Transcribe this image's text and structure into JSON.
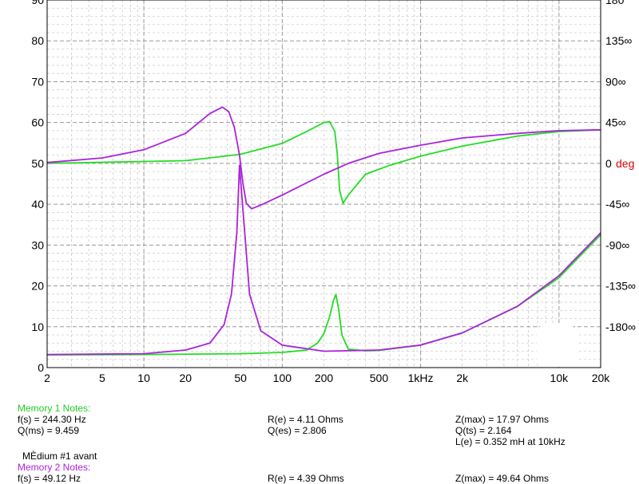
{
  "chart_data": {
    "type": "line",
    "xscale": "log",
    "xlim": [
      2,
      20000
    ],
    "ylim": [
      0,
      90
    ],
    "y2lim": [
      -225,
      180
    ],
    "grid": true,
    "x_ticks": [
      {
        "value": 2,
        "label": "2"
      },
      {
        "value": 5,
        "label": "5"
      },
      {
        "value": 10,
        "label": "10"
      },
      {
        "value": 20,
        "label": "20"
      },
      {
        "value": 50,
        "label": "50"
      },
      {
        "value": 100,
        "label": "100"
      },
      {
        "value": 200,
        "label": "200"
      },
      {
        "value": 500,
        "label": "500"
      },
      {
        "value": 1000,
        "label": "1kHz"
      },
      {
        "value": 2000,
        "label": "2k"
      },
      {
        "value": 10000,
        "label": "10k"
      },
      {
        "value": 20000,
        "label": "20k"
      }
    ],
    "y_ticks": [
      {
        "value": 0,
        "label": "0"
      },
      {
        "value": 10,
        "label": "10"
      },
      {
        "value": 20,
        "label": "20"
      },
      {
        "value": 30,
        "label": "30"
      },
      {
        "value": 40,
        "label": "40"
      },
      {
        "value": 50,
        "label": "50"
      },
      {
        "value": 60,
        "label": "60"
      },
      {
        "value": 70,
        "label": "70"
      },
      {
        "value": 80,
        "label": "80"
      },
      {
        "value": 90,
        "label": "90"
      }
    ],
    "y2_ticks": [
      {
        "value": 180,
        "label": "180"
      },
      {
        "value": 135,
        "label": "135∞"
      },
      {
        "value": 90,
        "label": "90∞"
      },
      {
        "value": 45,
        "label": "45∞"
      },
      {
        "value": 0,
        "label": "0"
      },
      {
        "value": -45,
        "label": "-45∞"
      },
      {
        "value": -90,
        "label": "-90∞"
      },
      {
        "value": -135,
        "label": "-135∞"
      },
      {
        "value": -180,
        "label": "-180∞"
      }
    ],
    "y2_zero_unit": "deg",
    "series": [
      {
        "name": "Memory 1",
        "kind": "impedance",
        "color": "#22dd22",
        "points": [
          [
            2,
            3.1
          ],
          [
            10,
            3.2
          ],
          [
            50,
            3.4
          ],
          [
            100,
            3.7
          ],
          [
            150,
            4.3
          ],
          [
            180,
            6.0
          ],
          [
            200,
            8.3
          ],
          [
            220,
            12.5
          ],
          [
            235,
            16.5
          ],
          [
            244,
            17.9
          ],
          [
            255,
            14.5
          ],
          [
            270,
            8.0
          ],
          [
            300,
            4.5
          ],
          [
            400,
            4.1
          ],
          [
            500,
            4.2
          ],
          [
            1000,
            5.5
          ],
          [
            2000,
            8.5
          ],
          [
            5000,
            15.0
          ],
          [
            10000,
            22.0
          ],
          [
            20000,
            32.5
          ]
        ]
      },
      {
        "name": "Memory 1",
        "kind": "phase",
        "color": "#22dd22",
        "points": [
          [
            2,
            0
          ],
          [
            20,
            3
          ],
          [
            50,
            10
          ],
          [
            100,
            22
          ],
          [
            150,
            35
          ],
          [
            200,
            45
          ],
          [
            220,
            46
          ],
          [
            240,
            35
          ],
          [
            250,
            10
          ],
          [
            260,
            -30
          ],
          [
            275,
            -44
          ],
          [
            300,
            -35
          ],
          [
            400,
            -12
          ],
          [
            600,
            -2
          ],
          [
            1000,
            8
          ],
          [
            2000,
            19
          ],
          [
            5000,
            30
          ],
          [
            10000,
            35
          ],
          [
            20000,
            37
          ]
        ]
      },
      {
        "name": "Memory 2",
        "kind": "impedance",
        "color": "#aa22dd",
        "points": [
          [
            2,
            3.2
          ],
          [
            10,
            3.4
          ],
          [
            20,
            4.3
          ],
          [
            30,
            6.0
          ],
          [
            38,
            10.5
          ],
          [
            43,
            18.0
          ],
          [
            47,
            33.0
          ],
          [
            49.1,
            49.5
          ],
          [
            53,
            35.0
          ],
          [
            58,
            18.0
          ],
          [
            70,
            9.0
          ],
          [
            100,
            5.5
          ],
          [
            200,
            4.0
          ],
          [
            500,
            4.3
          ],
          [
            1000,
            5.5
          ],
          [
            2000,
            8.5
          ],
          [
            5000,
            15.0
          ],
          [
            10000,
            22.5
          ],
          [
            20000,
            33.0
          ]
        ]
      },
      {
        "name": "Memory 2",
        "kind": "phase",
        "color": "#aa22dd",
        "points": [
          [
            2,
            1
          ],
          [
            5,
            6
          ],
          [
            10,
            15
          ],
          [
            20,
            33
          ],
          [
            30,
            55
          ],
          [
            37,
            62
          ],
          [
            41,
            57
          ],
          [
            45,
            40
          ],
          [
            49,
            10
          ],
          [
            52,
            -22
          ],
          [
            55,
            -44
          ],
          [
            60,
            -50
          ],
          [
            70,
            -46
          ],
          [
            100,
            -35
          ],
          [
            200,
            -12
          ],
          [
            300,
            0
          ],
          [
            500,
            11
          ],
          [
            1000,
            20
          ],
          [
            2000,
            28
          ],
          [
            5000,
            33
          ],
          [
            10000,
            36
          ],
          [
            20000,
            37
          ]
        ]
      }
    ]
  },
  "notes": {
    "m1_header": "Memory 1 Notes:",
    "m1_fs": "f(s) = 244.30 Hz",
    "m1_qms": "Q(ms) = 9.459",
    "m1_re": "R(e) = 4.11 Ohms",
    "m1_qes": "Q(es) = 2.806",
    "m1_zmax": "Z(max) = 17.97 Ohms",
    "m1_qts": "Q(ts) = 2.164",
    "m1_le": "L(e) = 0.352 mH at 10kHz",
    "m1_comment": "MÈdium #1 avant",
    "m2_header": "Memory 2 Notes:",
    "m2_fs": "f(s) = 49.12 Hz",
    "m2_re": "R(e) = 4.39 Ohms",
    "m2_zmax": "Z(max) = 49.64 Ohms"
  }
}
